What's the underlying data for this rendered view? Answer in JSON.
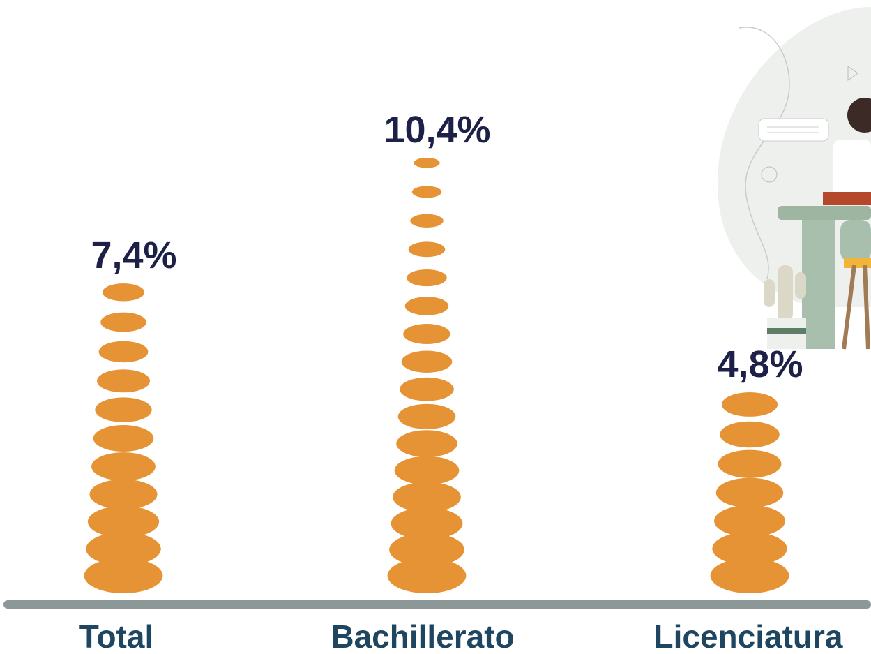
{
  "chart_data": {
    "type": "pictogram-bar",
    "categories": [
      "Total",
      "Bachillerato",
      "Licenciatura"
    ],
    "values": [
      7.4,
      10.4,
      4.8
    ],
    "value_labels": [
      "7,4%",
      "10,4%",
      "4,8%"
    ],
    "color": "#e69335"
  }
}
